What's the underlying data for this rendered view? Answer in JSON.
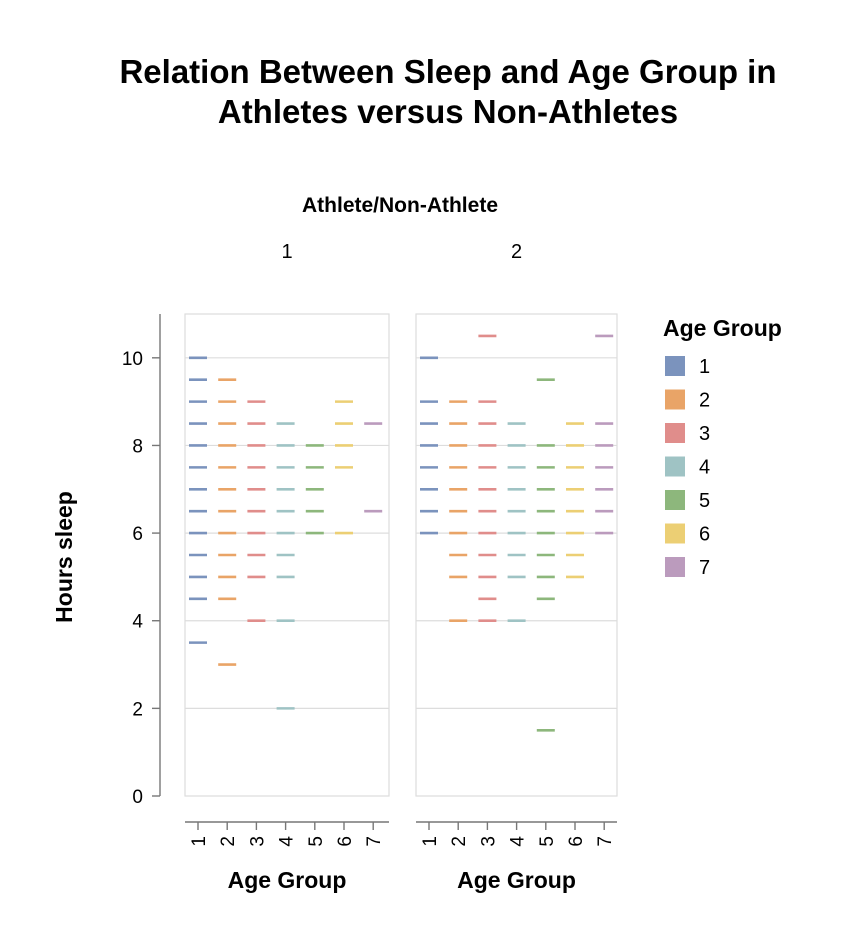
{
  "chart_data": {
    "type": "tick",
    "title": [
      "Relation Between Sleep and Age Group in",
      "Athletes versus Non-Athletes"
    ],
    "facet_title": "Athlete/Non-Athlete",
    "facets": [
      "1",
      "2"
    ],
    "xlabel": "Age Group",
    "ylabel": "Hours sleep",
    "x_categories": [
      "1",
      "2",
      "3",
      "4",
      "5",
      "6",
      "7"
    ],
    "ylim": [
      0,
      11
    ],
    "y_ticks": [
      0,
      2,
      4,
      6,
      8,
      10
    ],
    "grid": true,
    "legend": {
      "title": "Age Group",
      "position": "right",
      "entries": [
        "1",
        "2",
        "3",
        "4",
        "5",
        "6",
        "7"
      ]
    },
    "colors": [
      "#7b93bd",
      "#e9a467",
      "#e08d8b",
      "#9fc3c4",
      "#8db77c",
      "#eccf74",
      "#bb9bbd"
    ],
    "series": [
      {
        "facet": "1",
        "points": {
          "1": [
            3.5,
            4.5,
            5,
            5.5,
            6,
            6.5,
            7,
            7.5,
            8,
            8.5,
            9,
            9.5,
            10
          ],
          "2": [
            3,
            4.5,
            5,
            5.5,
            6,
            6.5,
            7,
            7.5,
            8,
            8.5,
            9,
            9.5
          ],
          "3": [
            4,
            5,
            5.5,
            6,
            6.5,
            7,
            7.5,
            8,
            8.5,
            9
          ],
          "4": [
            2,
            4,
            5,
            5.5,
            6,
            6.5,
            7,
            7.5,
            8,
            8.5
          ],
          "5": [
            6,
            6.5,
            7,
            7.5,
            8
          ],
          "6": [
            6,
            7.5,
            8,
            8.5,
            9
          ],
          "7": [
            6.5,
            8.5
          ]
        }
      },
      {
        "facet": "2",
        "points": {
          "1": [
            6,
            6.5,
            7,
            7.5,
            8,
            8.5,
            9,
            10
          ],
          "2": [
            4,
            5,
            5.5,
            6,
            6.5,
            7,
            7.5,
            8,
            8.5,
            9
          ],
          "3": [
            4,
            4.5,
            5,
            5.5,
            6,
            6.5,
            7,
            7.5,
            8,
            8.5,
            9,
            10.5
          ],
          "4": [
            4,
            5,
            5.5,
            6,
            6.5,
            7,
            7.5,
            8,
            8.5
          ],
          "5": [
            1.5,
            4.5,
            5,
            5.5,
            6,
            6.5,
            7,
            7.5,
            8,
            9.5
          ],
          "6": [
            5,
            5.5,
            6,
            6.5,
            7,
            7.5,
            8,
            8.5
          ],
          "7": [
            6,
            6.5,
            7,
            7.5,
            8,
            8.5,
            10.5
          ]
        }
      }
    ]
  }
}
